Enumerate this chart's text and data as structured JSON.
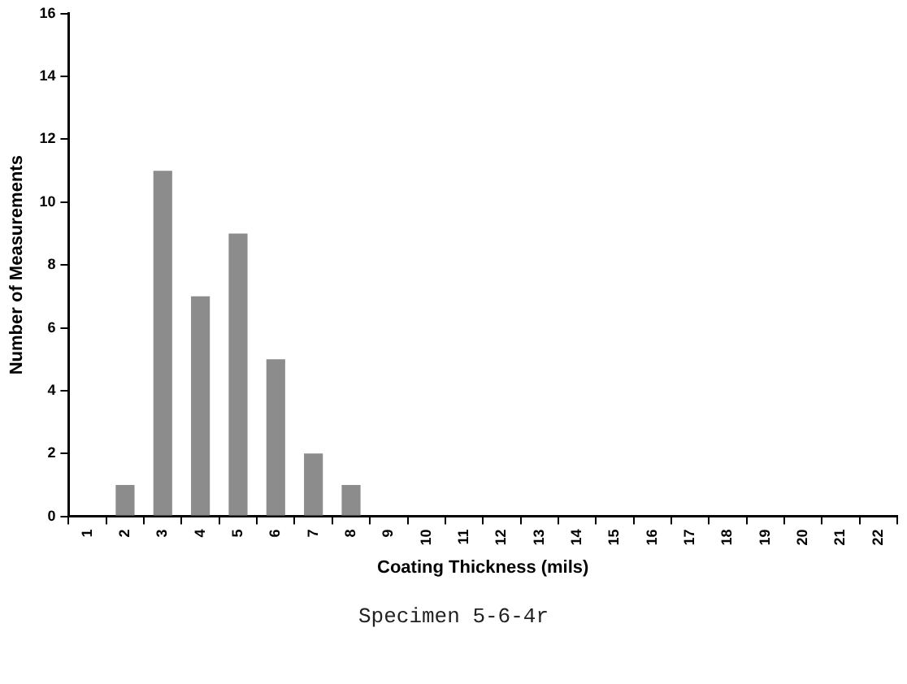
{
  "chart_data": {
    "type": "bar",
    "xlabel": "Coating Thickness (mils)",
    "ylabel": "Number of Measurements",
    "categories": [
      "1",
      "2",
      "3",
      "4",
      "5",
      "6",
      "7",
      "8",
      "9",
      "10",
      "11",
      "12",
      "13",
      "14",
      "15",
      "16",
      "17",
      "18",
      "19",
      "20",
      "21",
      "22"
    ],
    "values": [
      0,
      1,
      11,
      7,
      9,
      5,
      2,
      1,
      0,
      0,
      0,
      0,
      0,
      0,
      0,
      0,
      0,
      0,
      0,
      0,
      0,
      0
    ],
    "color": "#8c8c8c",
    "ylim": [
      0,
      16
    ],
    "yticks": [
      0,
      2,
      4,
      6,
      8,
      10,
      12,
      14,
      16
    ],
    "grid": false,
    "legend": false,
    "annotations": [
      "Specimen 5-6-4r"
    ]
  }
}
